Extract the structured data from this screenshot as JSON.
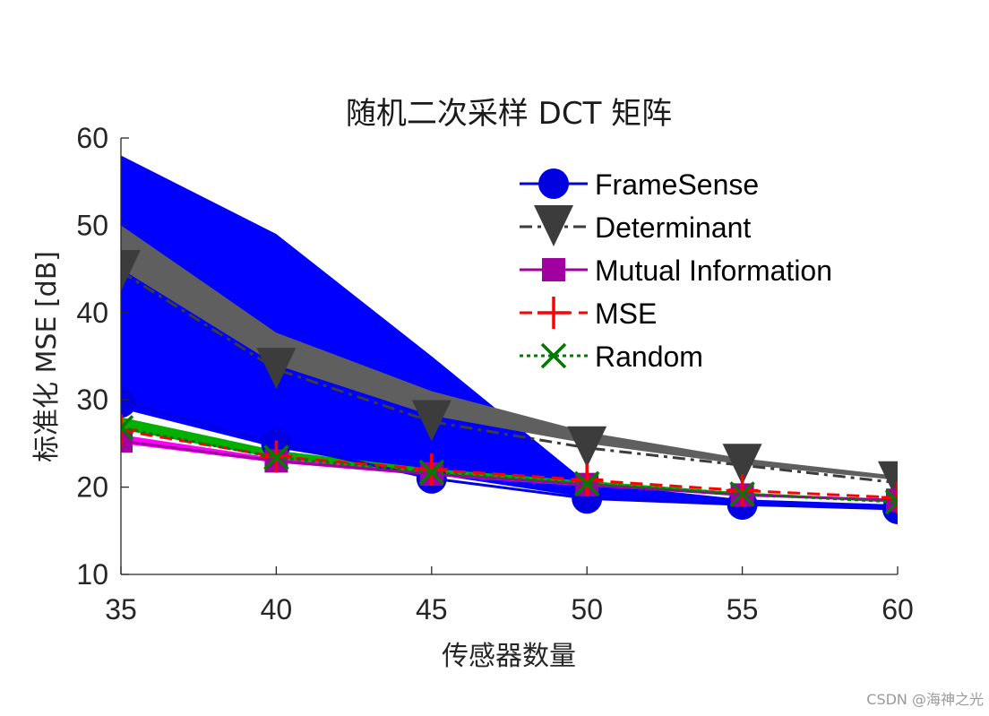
{
  "chart_data": {
    "type": "line",
    "title": "随机二次采样 DCT 矩阵",
    "xlabel": "传感器数量",
    "ylabel": "标准化 MSE [dB]",
    "x": [
      35,
      40,
      45,
      50,
      55,
      60
    ],
    "xlim": [
      35,
      60
    ],
    "ylim": [
      10,
      60
    ],
    "xticks": [
      35,
      40,
      45,
      50,
      55,
      60
    ],
    "yticks": [
      10,
      20,
      30,
      40,
      50,
      60
    ],
    "grid": false,
    "legend_position": "upper right",
    "series": [
      {
        "name": "FrameSense",
        "color": "#0000e0",
        "band_color": "#0000ff",
        "line_style": "solid",
        "marker": "circle",
        "values": [
          29.7,
          25.0,
          21.0,
          18.7,
          18.0,
          17.5
        ],
        "band_upper": [
          58.0,
          49.0,
          35.0,
          20.5,
          18.6,
          18.0
        ],
        "band_lower": [
          29.0,
          24.5,
          21.5,
          18.8,
          18.0,
          17.5
        ]
      },
      {
        "name": "Determinant",
        "color": "#3c3c3c",
        "band_color": "#5f5f5f",
        "line_style": "dashdot",
        "marker": "triangle-down",
        "values": [
          44.7,
          33.5,
          27.5,
          24.5,
          22.5,
          20.5
        ],
        "band_upper": [
          50.0,
          37.7,
          31.0,
          26.3,
          23.3,
          21.3
        ],
        "band_lower": [
          45.0,
          34.0,
          28.2,
          25.0,
          22.6,
          20.8
        ]
      },
      {
        "name": "Mutual Information",
        "color": "#a000a0",
        "band_color": "#ff00ff",
        "line_style": "solid",
        "marker": "square",
        "values": [
          25.3,
          23.0,
          21.5,
          20.3,
          19.1,
          18.5
        ],
        "band_upper": [
          26.0,
          23.3,
          21.7,
          20.4,
          19.2,
          18.6
        ],
        "band_lower": [
          25.0,
          22.8,
          21.3,
          20.1,
          19.0,
          18.4
        ]
      },
      {
        "name": "MSE",
        "color": "#ff0000",
        "line_style": "dashed",
        "marker": "plus",
        "values": [
          26.5,
          23.5,
          22.0,
          20.8,
          19.6,
          18.8
        ]
      },
      {
        "name": "Random",
        "color": "#007a00",
        "band_color": "#00b000",
        "line_style": "dotted",
        "marker": "x",
        "values": [
          26.8,
          23.4,
          21.7,
          20.4,
          19.2,
          18.3
        ],
        "band_upper": [
          28.0,
          24.2,
          22.1,
          20.7,
          19.4,
          18.5
        ],
        "band_lower": [
          26.6,
          23.3,
          21.6,
          20.3,
          19.1,
          18.2
        ]
      }
    ]
  },
  "watermark": "CSDN @海神之光"
}
